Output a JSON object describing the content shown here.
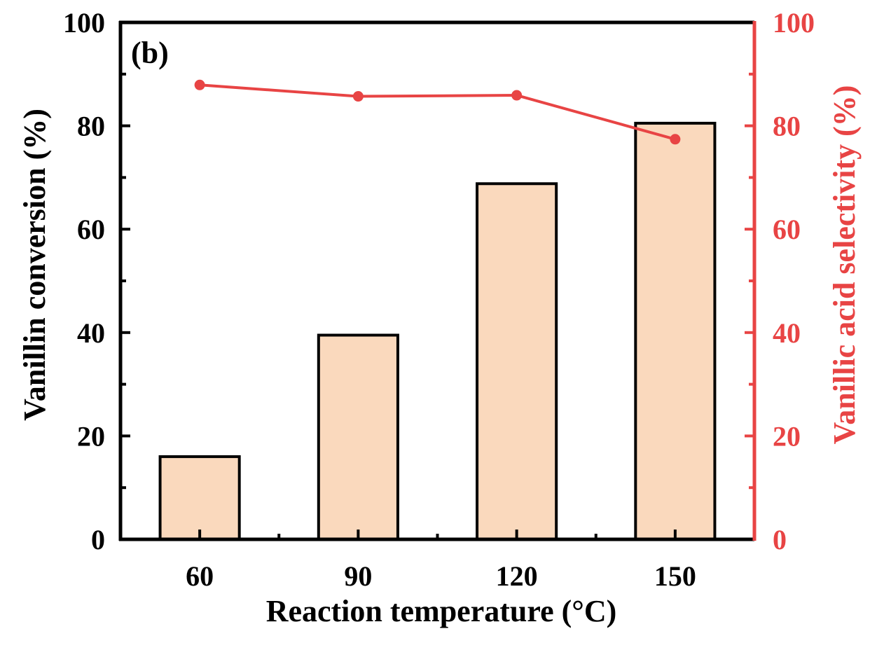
{
  "chart_data": {
    "type": "bar",
    "panel_label": "(b)",
    "categories": [
      "60",
      "90",
      "120",
      "150"
    ],
    "xlabel": "Reaction temperature (°C)",
    "ylabel": "Vanillin conversion (%)",
    "y2label": "Vanillic acid selectivity (%)",
    "ylim": [
      0,
      100
    ],
    "y2lim": [
      0,
      100
    ],
    "yticks": [
      "0",
      "20",
      "40",
      "60",
      "80",
      "100"
    ],
    "y2ticks": [
      "0",
      "20",
      "40",
      "60",
      "80",
      "100"
    ],
    "grid": false,
    "series": [
      {
        "type": "bar",
        "axis": "left",
        "values": [
          16,
          39.5,
          68.8,
          80.5
        ],
        "color": "#fad9bd",
        "edge_color": "#000000"
      },
      {
        "type": "line",
        "axis": "right",
        "values": [
          87.9,
          85.7,
          85.9,
          77.4
        ],
        "color": "#e84444"
      }
    ]
  }
}
